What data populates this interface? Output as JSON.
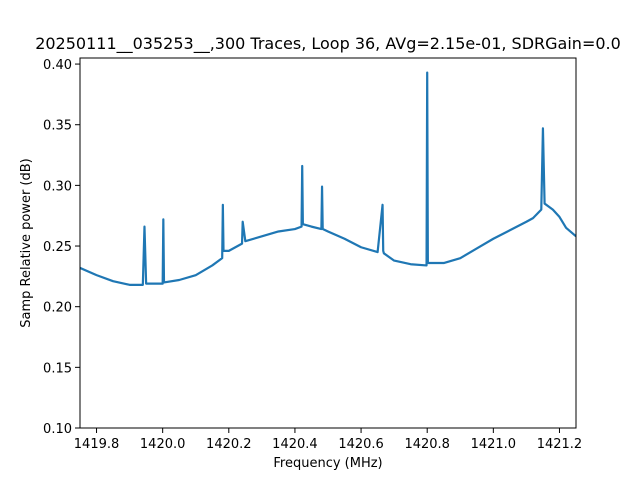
{
  "chart_data": {
    "type": "line",
    "title": "20250111__035253__,300 Traces, Loop 36, AVg=2.15e-01, SDRGain=0.0",
    "xlabel": "Frequency (MHz)",
    "ylabel": "Samp Relative power (dB)",
    "xlim": [
      1419.75,
      1421.25
    ],
    "ylim": [
      0.1,
      0.405
    ],
    "xticks": [
      1419.8,
      1420.0,
      1420.2,
      1420.4,
      1420.6,
      1420.8,
      1421.0,
      1421.2
    ],
    "xtick_labels": [
      "1419.8",
      "1420.0",
      "1420.2",
      "1420.4",
      "1420.6",
      "1420.8",
      "1421.0",
      "1421.2"
    ],
    "yticks": [
      0.1,
      0.15,
      0.2,
      0.25,
      0.3,
      0.35,
      0.4
    ],
    "ytick_labels": [
      "0.10",
      "0.15",
      "0.20",
      "0.25",
      "0.30",
      "0.35",
      "0.40"
    ],
    "grid": false,
    "series": [
      {
        "color": "#1f77b4",
        "x": [
          1419.75,
          1419.8,
          1419.85,
          1419.9,
          1419.94,
          1419.945,
          1419.95,
          1420.0,
          1420.002,
          1420.004,
          1420.05,
          1420.1,
          1420.15,
          1420.18,
          1420.182,
          1420.184,
          1420.2,
          1420.24,
          1420.242,
          1420.25,
          1420.3,
          1420.35,
          1420.4,
          1420.42,
          1420.422,
          1420.424,
          1420.45,
          1420.48,
          1420.482,
          1420.484,
          1420.5,
          1420.55,
          1420.6,
          1420.65,
          1420.665,
          1420.667,
          1420.669,
          1420.7,
          1420.75,
          1420.798,
          1420.8,
          1420.802,
          1420.85,
          1420.9,
          1420.95,
          1421.0,
          1421.05,
          1421.1,
          1421.12,
          1421.145,
          1421.15,
          1421.155,
          1421.18,
          1421.2,
          1421.22,
          1421.25
        ],
        "y": [
          0.232,
          0.226,
          0.221,
          0.218,
          0.218,
          0.266,
          0.219,
          0.219,
          0.272,
          0.22,
          0.222,
          0.226,
          0.234,
          0.24,
          0.284,
          0.246,
          0.246,
          0.252,
          0.27,
          0.254,
          0.258,
          0.262,
          0.264,
          0.266,
          0.316,
          0.268,
          0.266,
          0.264,
          0.299,
          0.264,
          0.262,
          0.256,
          0.249,
          0.245,
          0.284,
          0.246,
          0.244,
          0.238,
          0.235,
          0.234,
          0.393,
          0.236,
          0.236,
          0.24,
          0.248,
          0.256,
          0.263,
          0.27,
          0.273,
          0.28,
          0.347,
          0.285,
          0.28,
          0.274,
          0.265,
          0.258
        ]
      }
    ]
  }
}
